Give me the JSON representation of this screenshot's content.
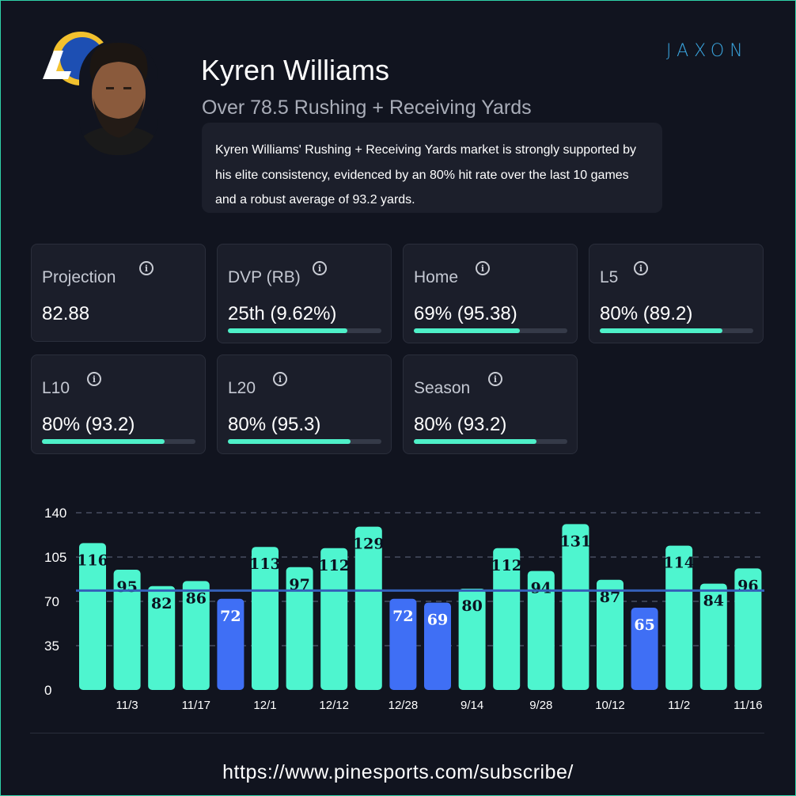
{
  "header": {
    "player_name": "Kyren Williams",
    "market": "Over 78.5 Rushing + Receiving Yards",
    "summary": "Kyren Williams' Rushing + Receiving Yards market is strongly supported by his elite consistency, evidenced by an 80% hit rate over the last 10 games and a robust average of 93.2 yards.",
    "brand": "JAXON"
  },
  "cards": [
    {
      "label": "Projection",
      "value": "82.88",
      "bar": null
    },
    {
      "label": "DVP (RB)",
      "value": "25th (9.62%)",
      "bar": 0.78
    },
    {
      "label": "Home",
      "value": "69% (95.38)",
      "bar": 0.69
    },
    {
      "label": "L5",
      "value": "80% (89.2)",
      "bar": 0.8
    },
    {
      "label": "L10",
      "value": "80% (93.2)",
      "bar": 0.8
    },
    {
      "label": "L20",
      "value": "80% (95.3)",
      "bar": 0.8
    },
    {
      "label": "Season",
      "value": "80% (93.2)",
      "bar": 0.8
    }
  ],
  "chart_data": {
    "type": "bar",
    "values": [
      116,
      95,
      82,
      86,
      72,
      113,
      97,
      112,
      129,
      72,
      69,
      80,
      112,
      94,
      131,
      87,
      65,
      114,
      84,
      96
    ],
    "x_tick_labels": [
      {
        "index": 1,
        "label": "11/3"
      },
      {
        "index": 3,
        "label": "11/17"
      },
      {
        "index": 5,
        "label": "12/1"
      },
      {
        "index": 7,
        "label": "12/12"
      },
      {
        "index": 9,
        "label": "12/28"
      },
      {
        "index": 11,
        "label": "9/14"
      },
      {
        "index": 13,
        "label": "9/28"
      },
      {
        "index": 15,
        "label": "10/12"
      },
      {
        "index": 17,
        "label": "11/2"
      },
      {
        "index": 19,
        "label": "11/16"
      }
    ],
    "y_ticks": [
      0,
      35,
      70,
      105,
      140
    ],
    "ylim": [
      0,
      140
    ],
    "line": 78.5,
    "colors": {
      "over": "#4ef5cf",
      "under": "#3f6ff5",
      "line": "#3460b9",
      "grid": "#3a3f50"
    },
    "grid": true
  },
  "footer": {
    "url": "https://www.pinesports.com/subscribe/"
  }
}
